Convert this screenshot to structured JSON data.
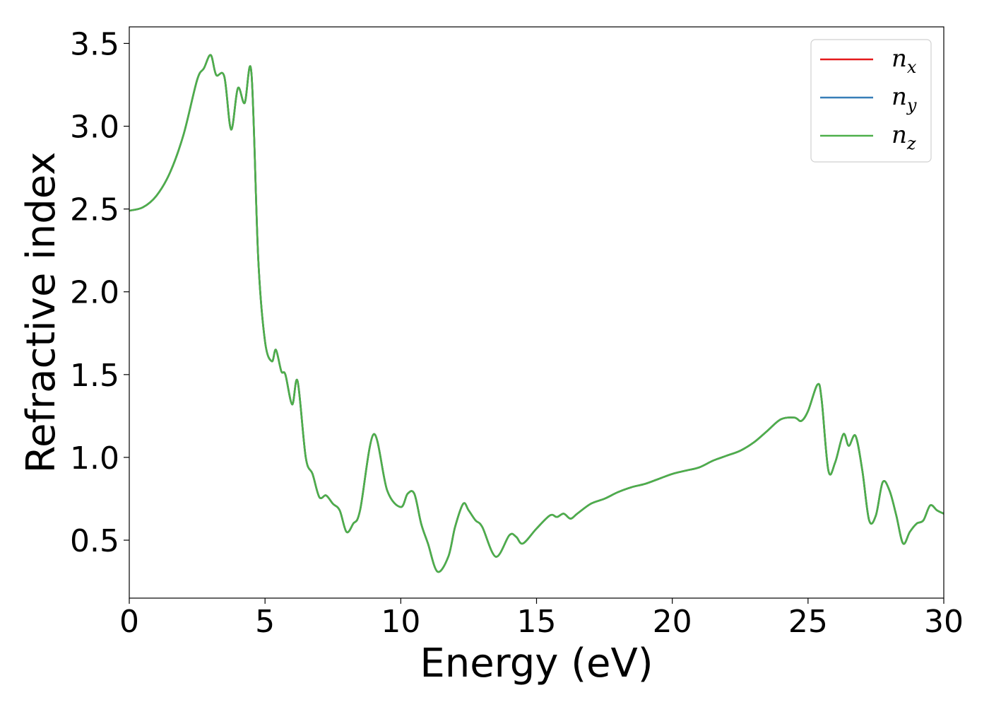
{
  "chart_data": {
    "type": "line",
    "title": "",
    "xlabel": "Energy (eV)",
    "ylabel": "Refractive index",
    "xlim": [
      0,
      30
    ],
    "ylim": [
      0.15,
      3.6
    ],
    "xticks": [
      0,
      5,
      10,
      15,
      20,
      25,
      30
    ],
    "xtick_labels": [
      "0",
      "5",
      "10",
      "15",
      "20",
      "25",
      "30"
    ],
    "yticks": [
      0.5,
      1.0,
      1.5,
      2.0,
      2.5,
      3.0,
      3.5
    ],
    "ytick_labels": [
      "0.5",
      "1.0",
      "1.5",
      "2.0",
      "2.5",
      "3.0",
      "3.5"
    ],
    "grid": false,
    "legend_position": "top-right",
    "series": [
      {
        "name": "n",
        "subscript": "x",
        "color": "#e41a1c",
        "x": [
          0,
          0.5,
          1,
          1.5,
          2,
          2.5,
          2.75,
          3,
          3.2,
          3.5,
          3.75,
          4,
          4.25,
          4.5,
          4.75,
          5,
          5.25,
          5.4,
          5.6,
          5.75,
          6,
          6.2,
          6.5,
          6.75,
          7,
          7.25,
          7.5,
          7.75,
          8,
          8.25,
          8.5,
          9,
          9.5,
          10,
          10.25,
          10.5,
          10.75,
          11,
          11.35,
          11.75,
          12,
          12.3,
          12.5,
          12.75,
          13,
          13.5,
          14,
          14.25,
          14.5,
          15,
          15.5,
          15.75,
          16,
          16.25,
          16.5,
          17,
          17.5,
          18,
          18.5,
          19,
          19.5,
          20,
          20.5,
          21,
          21.5,
          22,
          22.5,
          23,
          23.5,
          24,
          24.5,
          24.75,
          25,
          25.35,
          25.5,
          25.75,
          26,
          26.3,
          26.5,
          26.75,
          27,
          27.25,
          27.5,
          27.75,
          28,
          28.25,
          28.5,
          28.75,
          29,
          29.25,
          29.5,
          29.75,
          30
        ],
        "y": [
          2.49,
          2.51,
          2.58,
          2.72,
          2.95,
          3.28,
          3.35,
          3.43,
          3.31,
          3.3,
          2.98,
          3.23,
          3.14,
          3.32,
          2.2,
          1.7,
          1.58,
          1.65,
          1.52,
          1.5,
          1.32,
          1.46,
          1.0,
          0.9,
          0.76,
          0.77,
          0.72,
          0.68,
          0.55,
          0.6,
          0.68,
          1.14,
          0.8,
          0.7,
          0.78,
          0.78,
          0.6,
          0.48,
          0.31,
          0.4,
          0.58,
          0.72,
          0.68,
          0.62,
          0.58,
          0.4,
          0.53,
          0.52,
          0.48,
          0.57,
          0.65,
          0.64,
          0.66,
          0.63,
          0.66,
          0.72,
          0.75,
          0.79,
          0.82,
          0.84,
          0.87,
          0.9,
          0.92,
          0.94,
          0.98,
          1.01,
          1.04,
          1.09,
          1.16,
          1.23,
          1.24,
          1.22,
          1.28,
          1.44,
          1.35,
          0.92,
          0.97,
          1.14,
          1.07,
          1.13,
          0.92,
          0.62,
          0.65,
          0.85,
          0.8,
          0.65,
          0.48,
          0.55,
          0.6,
          0.62,
          0.71,
          0.68,
          0.66
        ]
      },
      {
        "name": "n",
        "subscript": "y",
        "color": "#377eb8",
        "x": [
          0,
          0.5,
          1,
          1.5,
          2,
          2.5,
          2.75,
          3,
          3.2,
          3.5,
          3.75,
          4,
          4.25,
          4.5,
          4.75,
          5,
          5.25,
          5.4,
          5.6,
          5.75,
          6,
          6.2,
          6.5,
          6.75,
          7,
          7.25,
          7.5,
          7.75,
          8,
          8.25,
          8.5,
          9,
          9.5,
          10,
          10.25,
          10.5,
          10.75,
          11,
          11.35,
          11.75,
          12,
          12.3,
          12.5,
          12.75,
          13,
          13.5,
          14,
          14.25,
          14.5,
          15,
          15.5,
          15.75,
          16,
          16.25,
          16.5,
          17,
          17.5,
          18,
          18.5,
          19,
          19.5,
          20,
          20.5,
          21,
          21.5,
          22,
          22.5,
          23,
          23.5,
          24,
          24.5,
          24.75,
          25,
          25.35,
          25.5,
          25.75,
          26,
          26.3,
          26.5,
          26.75,
          27,
          27.25,
          27.5,
          27.75,
          28,
          28.25,
          28.5,
          28.75,
          29,
          29.25,
          29.5,
          29.75,
          30
        ],
        "y": [
          2.49,
          2.51,
          2.58,
          2.72,
          2.95,
          3.28,
          3.35,
          3.43,
          3.31,
          3.3,
          2.98,
          3.23,
          3.14,
          3.32,
          2.2,
          1.7,
          1.58,
          1.65,
          1.52,
          1.5,
          1.32,
          1.46,
          1.0,
          0.9,
          0.76,
          0.77,
          0.72,
          0.68,
          0.55,
          0.6,
          0.68,
          1.14,
          0.8,
          0.7,
          0.78,
          0.78,
          0.6,
          0.48,
          0.31,
          0.4,
          0.58,
          0.72,
          0.68,
          0.62,
          0.58,
          0.4,
          0.53,
          0.52,
          0.48,
          0.57,
          0.65,
          0.64,
          0.66,
          0.63,
          0.66,
          0.72,
          0.75,
          0.79,
          0.82,
          0.84,
          0.87,
          0.9,
          0.92,
          0.94,
          0.98,
          1.01,
          1.04,
          1.09,
          1.16,
          1.23,
          1.24,
          1.22,
          1.28,
          1.44,
          1.35,
          0.92,
          0.97,
          1.14,
          1.07,
          1.13,
          0.92,
          0.62,
          0.65,
          0.85,
          0.8,
          0.65,
          0.48,
          0.55,
          0.6,
          0.62,
          0.71,
          0.68,
          0.66
        ]
      },
      {
        "name": "n",
        "subscript": "z",
        "color": "#4daf4a",
        "x": [
          0,
          0.5,
          1,
          1.5,
          2,
          2.5,
          2.75,
          3,
          3.2,
          3.5,
          3.75,
          4,
          4.25,
          4.5,
          4.75,
          5,
          5.25,
          5.4,
          5.6,
          5.75,
          6,
          6.2,
          6.5,
          6.75,
          7,
          7.25,
          7.5,
          7.75,
          8,
          8.25,
          8.5,
          9,
          9.5,
          10,
          10.25,
          10.5,
          10.75,
          11,
          11.35,
          11.75,
          12,
          12.3,
          12.5,
          12.75,
          13,
          13.5,
          14,
          14.25,
          14.5,
          15,
          15.5,
          15.75,
          16,
          16.25,
          16.5,
          17,
          17.5,
          18,
          18.5,
          19,
          19.5,
          20,
          20.5,
          21,
          21.5,
          22,
          22.5,
          23,
          23.5,
          24,
          24.5,
          24.75,
          25,
          25.35,
          25.5,
          25.75,
          26,
          26.3,
          26.5,
          26.75,
          27,
          27.25,
          27.5,
          27.75,
          28,
          28.25,
          28.5,
          28.75,
          29,
          29.25,
          29.5,
          29.75,
          30
        ],
        "y": [
          2.49,
          2.51,
          2.58,
          2.72,
          2.95,
          3.28,
          3.35,
          3.43,
          3.31,
          3.3,
          2.98,
          3.23,
          3.14,
          3.32,
          2.2,
          1.7,
          1.58,
          1.65,
          1.52,
          1.5,
          1.32,
          1.46,
          1.0,
          0.9,
          0.76,
          0.77,
          0.72,
          0.68,
          0.55,
          0.6,
          0.68,
          1.14,
          0.8,
          0.7,
          0.78,
          0.78,
          0.6,
          0.48,
          0.31,
          0.4,
          0.58,
          0.72,
          0.68,
          0.62,
          0.58,
          0.4,
          0.53,
          0.52,
          0.48,
          0.57,
          0.65,
          0.64,
          0.66,
          0.63,
          0.66,
          0.72,
          0.75,
          0.79,
          0.82,
          0.84,
          0.87,
          0.9,
          0.92,
          0.94,
          0.98,
          1.01,
          1.04,
          1.09,
          1.16,
          1.23,
          1.24,
          1.22,
          1.28,
          1.44,
          1.35,
          0.92,
          0.97,
          1.14,
          1.07,
          1.13,
          0.92,
          0.62,
          0.65,
          0.85,
          0.8,
          0.65,
          0.48,
          0.55,
          0.6,
          0.62,
          0.71,
          0.68,
          0.66
        ]
      }
    ]
  }
}
